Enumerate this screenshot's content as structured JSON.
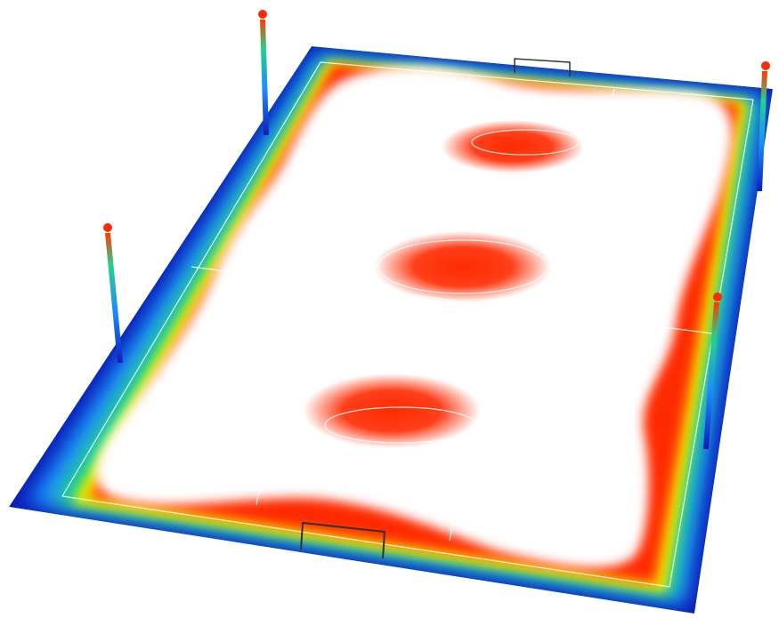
{
  "scene": {
    "subject": "football-pitch-illuminance-heatmap",
    "colors": {
      "background": "#ffffff",
      "low": "#0a1fb8",
      "low_mid": "#1e8cff",
      "mid": "#22d48a",
      "mid_high": "#d7f200",
      "high_mid": "#ffb000",
      "high": "#ff2a00",
      "peak": "#ffffff",
      "line": "#ffffff",
      "goal": "#333333"
    },
    "icons": {
      "light_pole": "floodlight-pole-icon",
      "goal": "goal-frame-icon"
    },
    "light_pole_count": 4,
    "goal_count": 2
  }
}
